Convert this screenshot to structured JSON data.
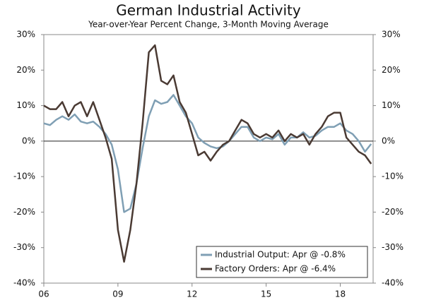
{
  "chart_data": {
    "type": "line",
    "title": "German Industrial Activity",
    "subtitle": "Year-over-Year Percent Change, 3-Month Moving Average",
    "x": [
      2006,
      2006.25,
      2006.5,
      2006.75,
      2007,
      2007.25,
      2007.5,
      2007.75,
      2008,
      2008.25,
      2008.5,
      2008.75,
      2009,
      2009.25,
      2009.5,
      2009.75,
      2010,
      2010.25,
      2010.5,
      2010.75,
      2011,
      2011.25,
      2011.5,
      2011.75,
      2012,
      2012.25,
      2012.5,
      2012.75,
      2013,
      2013.25,
      2013.5,
      2013.75,
      2014,
      2014.25,
      2014.5,
      2014.75,
      2015,
      2015.25,
      2015.5,
      2015.75,
      2016,
      2016.25,
      2016.5,
      2016.75,
      2017,
      2017.25,
      2017.5,
      2017.75,
      2018,
      2018.25,
      2018.5,
      2018.75,
      2019,
      2019.25
    ],
    "series": [
      {
        "name": "Industrial Output: Apr @ -0.8%",
        "color": "#7f9fb4",
        "values": [
          5,
          4.5,
          6,
          7,
          6,
          7.5,
          5.5,
          5,
          5.5,
          4,
          2,
          -1,
          -8,
          -20,
          -19,
          -12,
          -2,
          7,
          11.5,
          10.5,
          11,
          13,
          10,
          7,
          5,
          1,
          -0.5,
          -1.5,
          -2,
          -1.5,
          0,
          2,
          4,
          4,
          1,
          0,
          1,
          0.5,
          2,
          -1,
          1,
          1,
          2.5,
          1,
          1.5,
          3,
          4,
          4,
          5,
          3,
          2,
          0,
          -3,
          -0.8
        ]
      },
      {
        "name": "Factory Orders: Apr @ -6.4%",
        "color": "#4a3a33",
        "values": [
          10,
          9,
          9,
          11,
          7,
          10,
          11,
          7,
          11,
          6,
          1,
          -5,
          -25,
          -34,
          -25,
          -12,
          5,
          25,
          27,
          17,
          16,
          18.5,
          11,
          8,
          2,
          -4,
          -3,
          -5.5,
          -3,
          -1,
          0,
          3,
          6,
          5,
          2,
          1,
          2,
          1,
          3,
          0,
          2,
          1,
          2,
          -1,
          2,
          4,
          7,
          8,
          8,
          1,
          -1,
          -3,
          -4,
          -6.4
        ]
      }
    ],
    "xlim": [
      2006,
      2019.33
    ],
    "xticks": [
      {
        "value": 2006,
        "label": "06"
      },
      {
        "value": 2009,
        "label": "09"
      },
      {
        "value": 2012,
        "label": "12"
      },
      {
        "value": 2015,
        "label": "15"
      },
      {
        "value": 2018,
        "label": "18"
      }
    ],
    "ylim": [
      -40,
      30
    ],
    "yticks": [
      {
        "value": 30,
        "label": "30%"
      },
      {
        "value": 20,
        "label": "20%"
      },
      {
        "value": 10,
        "label": "10%"
      },
      {
        "value": 0,
        "label": "0%"
      },
      {
        "value": -10,
        "label": "-10%"
      },
      {
        "value": -20,
        "label": "-20%"
      },
      {
        "value": -30,
        "label": "-30%"
      },
      {
        "value": -40,
        "label": "-40%"
      }
    ],
    "y2lim": [
      -40,
      30
    ],
    "y2ticks": [
      {
        "value": 30,
        "label": "30%"
      },
      {
        "value": 20,
        "label": "20%"
      },
      {
        "value": 10,
        "label": "10%"
      },
      {
        "value": 0,
        "label": "0%"
      },
      {
        "value": -10,
        "label": "-10%"
      },
      {
        "value": -20,
        "label": "-20%"
      },
      {
        "value": -30,
        "label": "-30%"
      },
      {
        "value": -40,
        "label": "-40%"
      }
    ],
    "legend": "lower right"
  }
}
